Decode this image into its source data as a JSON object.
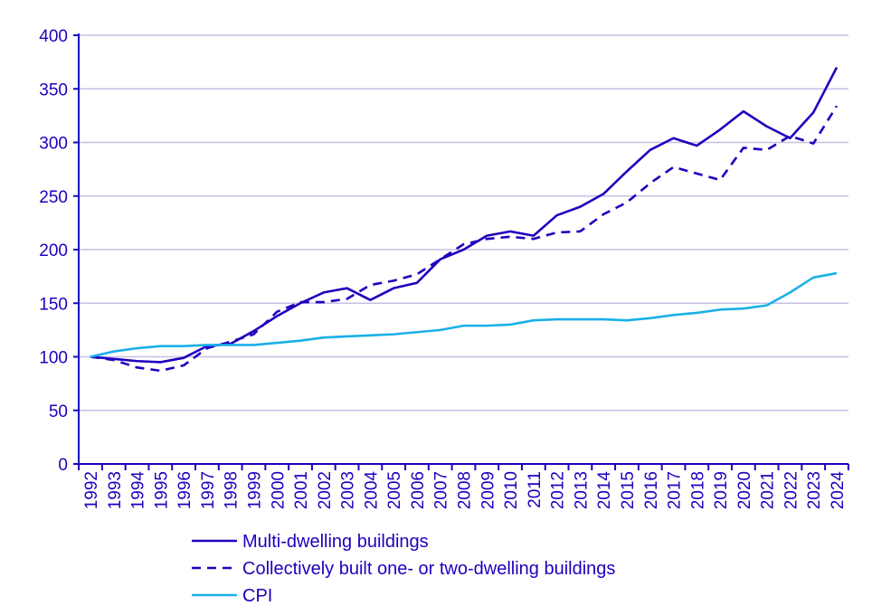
{
  "chart_data": {
    "type": "line",
    "title": "",
    "xlabel": "",
    "ylabel": "",
    "ylim": [
      0,
      400
    ],
    "yticks": [
      0,
      50,
      100,
      150,
      200,
      250,
      300,
      350,
      400
    ],
    "grid": true,
    "legend_position": "bottom",
    "x": [
      "1992",
      "1993",
      "1994",
      "1995",
      "1996",
      "1997",
      "1998",
      "1999",
      "2000",
      "2001",
      "2002",
      "2003",
      "2004",
      "2005",
      "2006",
      "2007",
      "2008",
      "2009",
      "2010",
      "2011",
      "2012",
      "2013",
      "2014",
      "2015",
      "2016",
      "2017",
      "2018",
      "2019",
      "2020",
      "2021",
      "2022",
      "2023",
      "2024"
    ],
    "series": [
      {
        "name": "Multi-dwelling buildings",
        "style": "solid",
        "color": "#1e00be",
        "values": [
          100,
          98,
          96,
          95,
          99,
          110,
          112,
          124,
          138,
          150,
          160,
          164,
          153,
          164,
          169,
          191,
          200,
          213,
          217,
          213,
          232,
          240,
          252,
          273,
          293,
          304,
          297,
          312,
          329,
          315,
          304,
          328,
          370
        ]
      },
      {
        "name": "Collectively built one- or two-dwelling buildings",
        "style": "dashed",
        "color": "#1e00be",
        "values": [
          100,
          97,
          90,
          87,
          92,
          108,
          114,
          121,
          142,
          151,
          151,
          154,
          167,
          171,
          177,
          191,
          205,
          210,
          212,
          210,
          216,
          217,
          233,
          244,
          262,
          277,
          271,
          265,
          295,
          293,
          306,
          299,
          334
        ]
      },
      {
        "name": "CPI",
        "style": "solid",
        "color": "#1ab0e8",
        "values": [
          100,
          105,
          108,
          110,
          110,
          111,
          111,
          111,
          113,
          115,
          118,
          119,
          120,
          121,
          123,
          125,
          129,
          129,
          130,
          134,
          135,
          135,
          135,
          134,
          136,
          139,
          141,
          144,
          145,
          148,
          160,
          174,
          178
        ]
      }
    ]
  }
}
